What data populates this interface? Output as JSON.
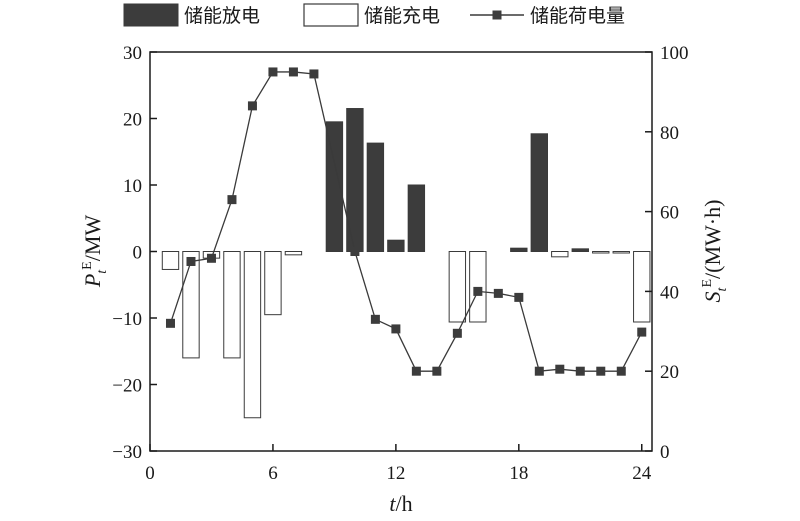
{
  "chart_data": {
    "type": "bar",
    "legend": {
      "placement": "top",
      "discharge": "储能放电",
      "charge": "储能充电",
      "soc": "储能荷电量"
    },
    "x_axis": {
      "label_italic": "t",
      "label_rest": "/h",
      "range": [
        0,
        24.5
      ],
      "ticks": [
        "0",
        "6",
        "12",
        "18",
        "24"
      ],
      "tick_values": [
        0,
        6,
        12,
        18,
        24
      ]
    },
    "y_left": {
      "label_main": "P",
      "label_sub": "t",
      "label_sup": "E",
      "label_unit": "/MW",
      "range": [
        -30,
        30
      ],
      "ticks": [
        "−30",
        "−20",
        "−10",
        "0",
        "10",
        "20",
        "30"
      ],
      "tick_values": [
        -30,
        -20,
        -10,
        0,
        10,
        20,
        30
      ]
    },
    "y_right": {
      "label_main": "S",
      "label_sub": "t",
      "label_sup": "E",
      "label_unit": "/(MW·h)",
      "range": [
        0,
        100
      ],
      "ticks": [
        "0",
        "20",
        "40",
        "60",
        "80",
        "100"
      ],
      "tick_values": [
        0,
        20,
        40,
        60,
        80,
        100
      ]
    },
    "hours": [
      1,
      2,
      3,
      4,
      5,
      6,
      7,
      8,
      9,
      10,
      11,
      12,
      13,
      14,
      15,
      16,
      17,
      18,
      19,
      20,
      21,
      22,
      23,
      24
    ],
    "power": [
      -2.7,
      -16,
      -1,
      -16,
      -25,
      -9.5,
      -0.5,
      0,
      19.5,
      21.5,
      16.3,
      1.7,
      10,
      0,
      -10.6,
      -10.6,
      0,
      0.5,
      17.7,
      -0.8,
      0.4,
      -0.2,
      -0.2,
      -10.6
    ],
    "soc_hours": [
      1,
      2,
      3,
      4,
      5,
      6,
      7,
      8,
      10,
      11,
      12,
      13,
      14,
      15,
      16,
      17,
      18,
      19,
      20,
      21,
      22,
      23,
      24
    ],
    "soc": [
      32,
      47.5,
      48.3,
      63,
      86.5,
      95,
      95,
      94.5,
      50,
      33,
      30.6,
      20,
      20,
      29.5,
      40,
      39.5,
      38.5,
      20,
      20.5,
      20,
      20,
      20,
      29.8
    ],
    "colors": {
      "discharge_fill": "#3c3c3c",
      "charge_fill": "#ffffff",
      "bar_stroke": "#3a3a3a",
      "soc_line": "#3a3a3a",
      "soc_marker": "#3c3c3c",
      "axis": "#1a1a1a"
    }
  }
}
